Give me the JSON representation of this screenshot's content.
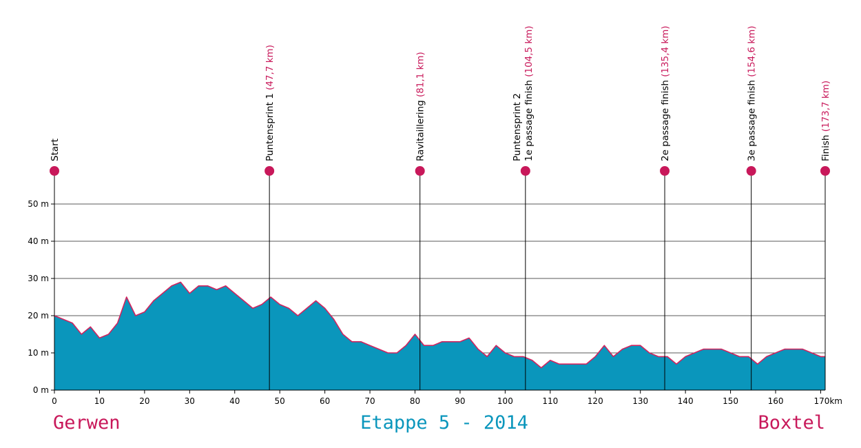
{
  "chart_data": {
    "type": "area",
    "title": "Etappe 5 - 2014",
    "start_place": "Gerwen",
    "finish_place": "Boxtel",
    "x_unit": "km",
    "y_unit": "m",
    "xlim": [
      0,
      171
    ],
    "ylim": [
      0,
      55
    ],
    "x_ticks": [
      0,
      10,
      20,
      30,
      40,
      50,
      60,
      70,
      80,
      90,
      100,
      110,
      120,
      130,
      140,
      150,
      160,
      170
    ],
    "y_ticks": [
      0,
      10,
      20,
      30,
      40,
      50
    ],
    "grid": true,
    "colors": {
      "fill": "#0a96bc",
      "line": "#d0245f",
      "marker": "#c8185a",
      "grid": "#222222",
      "place": "#c8185a",
      "title": "#0a96bc"
    },
    "elevation": {
      "x": [
        0,
        2,
        4,
        6,
        8,
        10,
        12,
        14,
        16,
        18,
        20,
        22,
        24,
        26,
        28,
        30,
        32,
        34,
        36,
        38,
        40,
        42,
        44,
        46,
        48,
        50,
        52,
        54,
        56,
        58,
        60,
        62,
        64,
        66,
        68,
        70,
        72,
        74,
        76,
        78,
        80,
        82,
        84,
        86,
        88,
        90,
        92,
        94,
        96,
        98,
        100,
        102,
        104,
        106,
        108,
        110,
        112,
        114,
        116,
        118,
        120,
        122,
        124,
        126,
        128,
        130,
        132,
        134,
        136,
        138,
        140,
        142,
        144,
        146,
        148,
        150,
        152,
        154,
        156,
        158,
        160,
        162,
        164,
        166,
        168,
        170,
        171
      ],
      "y": [
        20,
        19,
        18,
        15,
        17,
        14,
        15,
        18,
        25,
        20,
        21,
        24,
        26,
        28,
        29,
        26,
        28,
        28,
        27,
        28,
        26,
        24,
        22,
        23,
        25,
        23,
        22,
        20,
        22,
        24,
        22,
        19,
        15,
        13,
        13,
        12,
        11,
        10,
        10,
        12,
        15,
        12,
        12,
        13,
        13,
        13,
        14,
        11,
        9,
        12,
        10,
        9,
        9,
        8,
        6,
        8,
        7,
        7,
        7,
        7,
        9,
        12,
        9,
        11,
        12,
        12,
        10,
        9,
        9,
        7,
        9,
        10,
        11,
        11,
        11,
        10,
        9,
        9,
        7,
        9,
        10,
        11,
        11,
        11,
        10,
        9,
        9
      ]
    },
    "markers": [
      {
        "name": "Start",
        "name2": "",
        "km": 0,
        "km_label": ""
      },
      {
        "name": "Puntensprint 1",
        "name2": "",
        "km": 47.7,
        "km_label": "(47,7 km)"
      },
      {
        "name": "Ravitaillering",
        "name2": "",
        "km": 81.1,
        "km_label": "(81,1 km)"
      },
      {
        "name": "Puntensprint 2",
        "name2": "1e passage finish",
        "km": 104.5,
        "km_label": "(104,5 km)"
      },
      {
        "name": "2e passage finish",
        "name2": "",
        "km": 135.4,
        "km_label": "(135,4 km)"
      },
      {
        "name": "3e passage finish",
        "name2": "",
        "km": 154.6,
        "km_label": "(154,6 km)"
      },
      {
        "name": "Finish",
        "name2": "",
        "km": 173.7,
        "km_label": "(173,7 km)"
      }
    ]
  }
}
